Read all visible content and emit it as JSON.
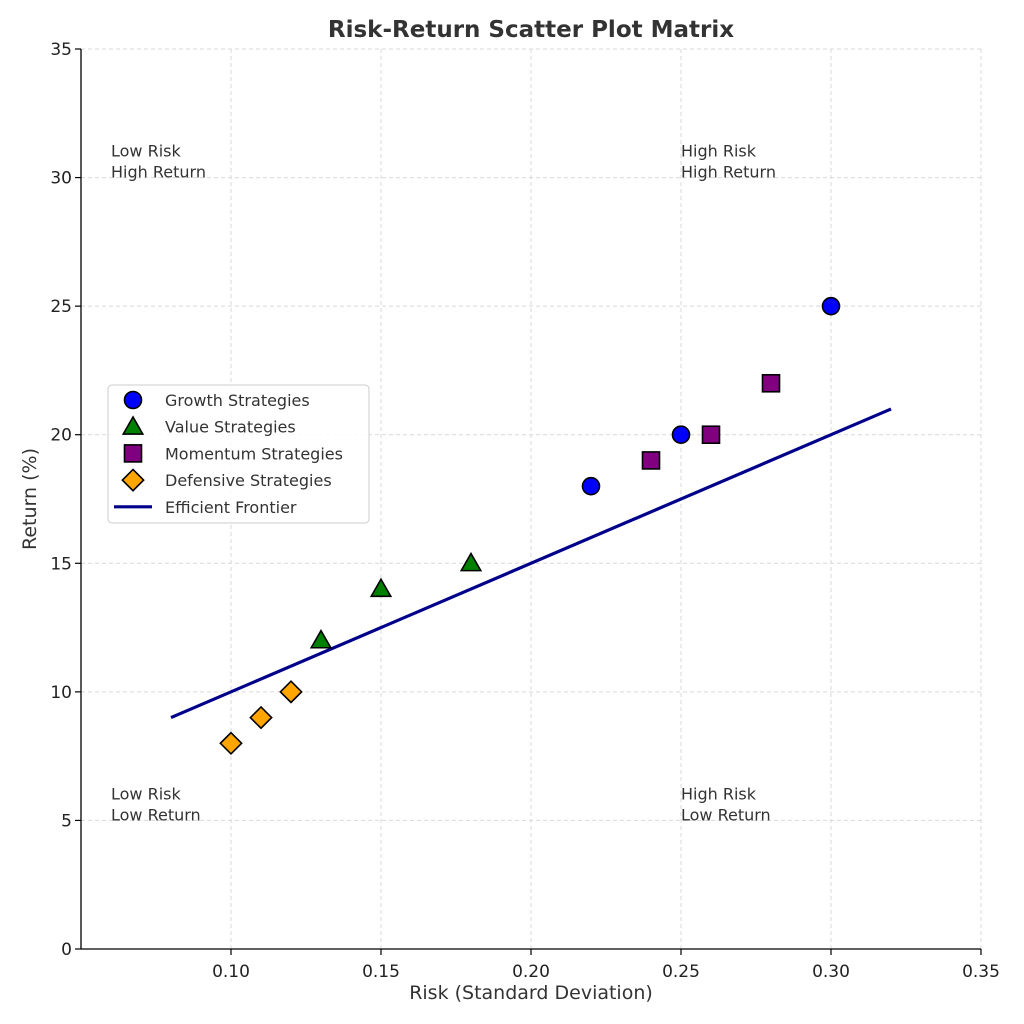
{
  "chart_data": {
    "type": "scatter",
    "title": "Risk-Return Scatter Plot Matrix",
    "xlabel": "Risk (Standard Deviation)",
    "ylabel": "Return (%)",
    "xlim": [
      0.05,
      0.35
    ],
    "ylim": [
      0,
      35
    ],
    "x_ticks": [
      "0.10",
      "0.15",
      "0.20",
      "0.25",
      "0.30",
      "0.35"
    ],
    "y_ticks": [
      "0",
      "5",
      "10",
      "15",
      "20",
      "25",
      "30",
      "35"
    ],
    "grid": true,
    "legend_position": "center-left",
    "series": [
      {
        "name": "Growth Strategies",
        "marker": "circle",
        "color": "#0000ff",
        "points": [
          {
            "x": 0.22,
            "y": 18
          },
          {
            "x": 0.25,
            "y": 20
          },
          {
            "x": 0.3,
            "y": 25
          }
        ]
      },
      {
        "name": "Value Strategies",
        "marker": "triangle",
        "color": "#008000",
        "points": [
          {
            "x": 0.13,
            "y": 12
          },
          {
            "x": 0.15,
            "y": 14
          },
          {
            "x": 0.18,
            "y": 15
          }
        ]
      },
      {
        "name": "Momentum Strategies",
        "marker": "square",
        "color": "#800080",
        "points": [
          {
            "x": 0.24,
            "y": 19
          },
          {
            "x": 0.26,
            "y": 20
          },
          {
            "x": 0.28,
            "y": 22
          }
        ]
      },
      {
        "name": "Defensive Strategies",
        "marker": "diamond",
        "color": "#ffa500",
        "points": [
          {
            "x": 0.1,
            "y": 8
          },
          {
            "x": 0.11,
            "y": 9
          },
          {
            "x": 0.12,
            "y": 10
          }
        ]
      }
    ],
    "line": {
      "name": "Efficient Frontier",
      "color": "#00008b",
      "points": [
        {
          "x": 0.08,
          "y": 9
        },
        {
          "x": 0.32,
          "y": 21
        }
      ]
    },
    "annotations": [
      {
        "line1": "Low Risk",
        "line2": "High Return",
        "x": 0.06,
        "y": 30
      },
      {
        "line1": "High Risk",
        "line2": "High Return",
        "x": 0.25,
        "y": 30
      },
      {
        "line1": "Low Risk",
        "line2": "Low Return",
        "x": 0.06,
        "y": 5
      },
      {
        "line1": "High Risk",
        "line2": "Low Return",
        "x": 0.25,
        "y": 5
      }
    ]
  }
}
